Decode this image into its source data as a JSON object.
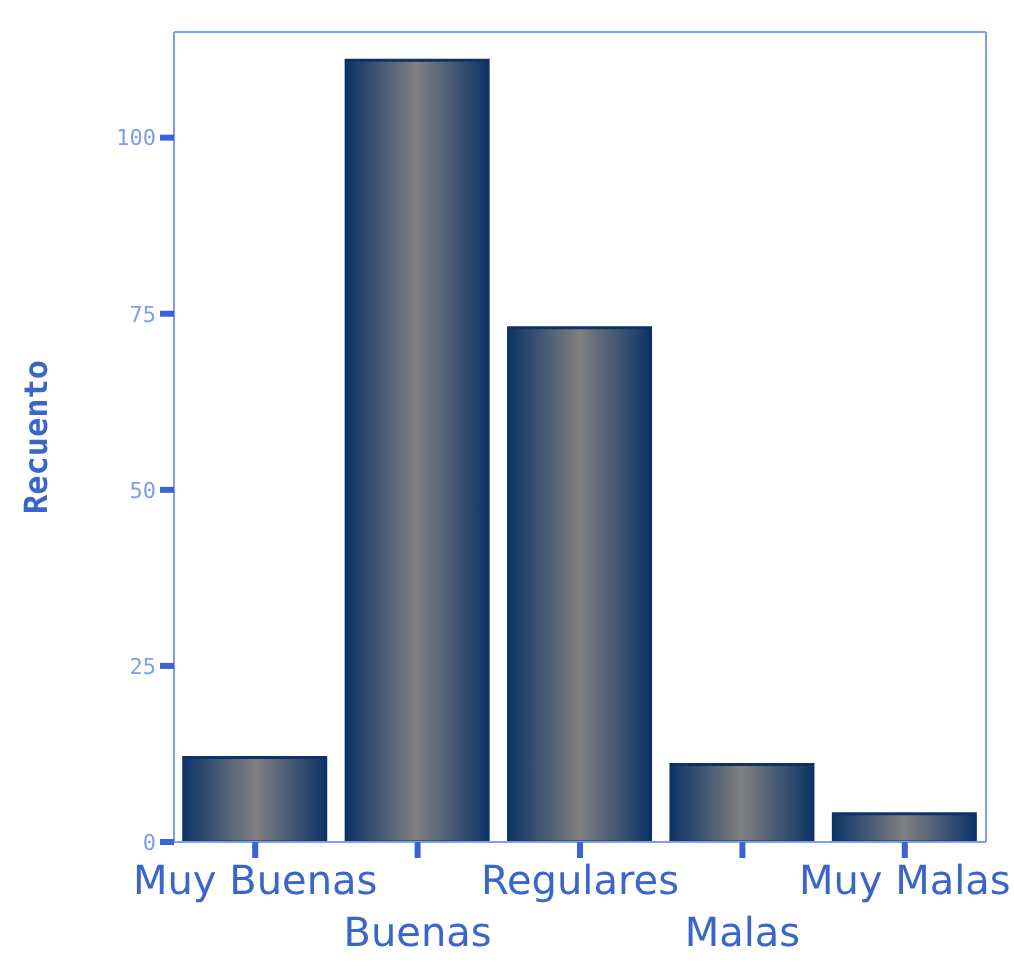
{
  "chart_data": {
    "type": "bar",
    "ylabel": "Recuento",
    "categories": [
      "Muy Buenas",
      "Buenas",
      "Regulares",
      "Malas",
      "Muy Malas"
    ],
    "values": [
      12,
      111,
      73,
      11,
      4
    ],
    "color": "#0d3366",
    "ylim": [
      0,
      115
    ],
    "yticks": [
      0,
      25,
      50,
      75,
      100
    ]
  }
}
